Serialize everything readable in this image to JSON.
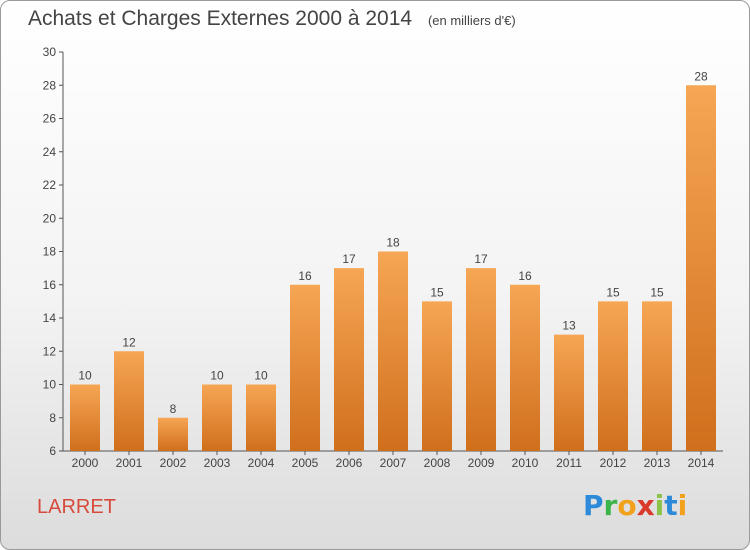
{
  "title": "Achats et Charges Externes 2000 à 2014",
  "subtitle": "(en milliers d'€)",
  "commune": "LARRET",
  "logo": {
    "text": "Proxiti",
    "letters": [
      "P",
      "r",
      "o",
      "x",
      "i",
      "t",
      "i"
    ]
  },
  "colors": {
    "bar_light": "#f6a654",
    "bar_dark": "#d06f1c",
    "axis": "#555555"
  },
  "chart_data": {
    "type": "bar",
    "title": "Achats et Charges Externes 2000 à 2014",
    "subtitle": "(en milliers d'€)",
    "xlabel": "",
    "ylabel": "",
    "categories": [
      "2000",
      "2001",
      "2002",
      "2003",
      "2004",
      "2005",
      "2006",
      "2007",
      "2008",
      "2009",
      "2010",
      "2011",
      "2012",
      "2013",
      "2014"
    ],
    "values": [
      10,
      12,
      8,
      10,
      10,
      16,
      17,
      18,
      15,
      17,
      16,
      13,
      15,
      15,
      28
    ],
    "ylim": [
      6,
      30
    ],
    "yticks": [
      6,
      8,
      10,
      12,
      14,
      16,
      18,
      20,
      22,
      24,
      26,
      28,
      30
    ],
    "grid": false,
    "legend": "none"
  }
}
